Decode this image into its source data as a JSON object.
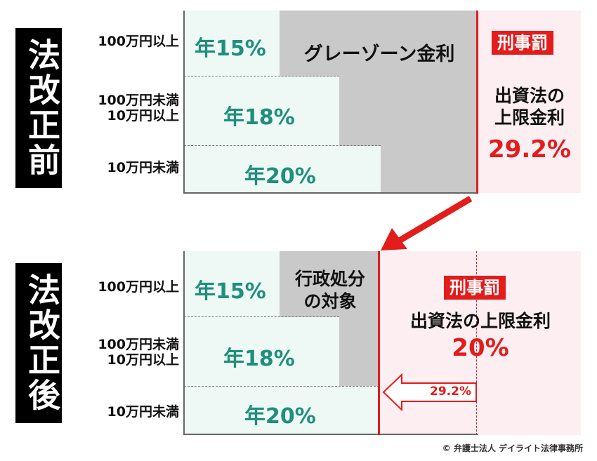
{
  "before": {
    "title": "法改正前",
    "rows": [
      {
        "label": "100万円以上",
        "rate": "年15%"
      },
      {
        "label": "100万円未満\n10万円以上",
        "rate": "年18%"
      },
      {
        "label": "10万円未満",
        "rate": "年20%"
      }
    ],
    "grey_zone": "グレーゾーン金利",
    "penalty_badge": "刑事罰",
    "limit_line1": "出資法の",
    "limit_line2": "上限金利",
    "limit_rate": "29.2%"
  },
  "after": {
    "title": "法改正後",
    "rows": [
      {
        "label": "100万円以上",
        "rate": "年15%"
      },
      {
        "label": "100万円未満\n10万円以上",
        "rate": "年18%"
      },
      {
        "label": "10万円未満",
        "rate": "年20%"
      }
    ],
    "grey_zone_line1": "行政処分",
    "grey_zone_line2": "の対象",
    "penalty_badge": "刑事罰",
    "limit_label": "出資法の上限金利",
    "limit_rate": "20%",
    "old_rate": "29.2%"
  },
  "copyright": "© 弁護士法人 デイライト法律事務所",
  "colors": {
    "accent_red": "#e31c1c",
    "rate_green": "#1f8f7b",
    "grey": "#c9c9c9",
    "pink": "#fdeef1",
    "mint": "#eef9f5"
  }
}
